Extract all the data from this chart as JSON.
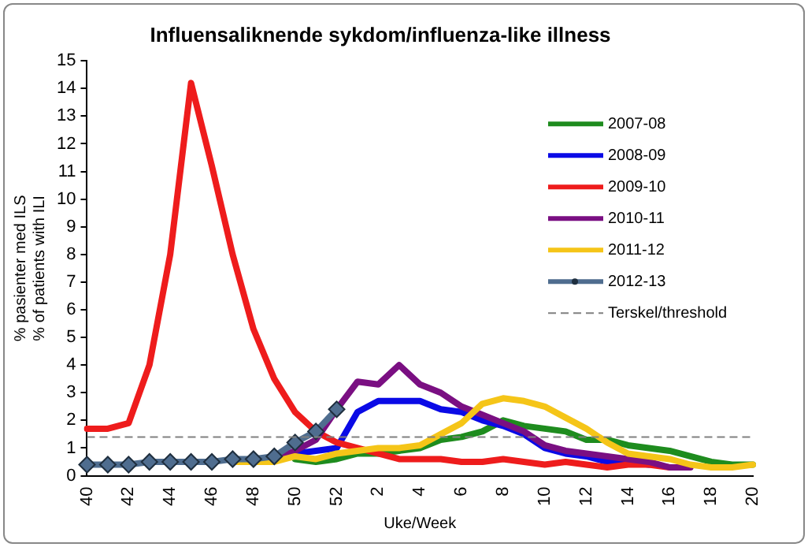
{
  "chart_data": {
    "type": "line",
    "title": "Influensaliknende sykdom/influenza-like illness",
    "xlabel": "Uke/Week",
    "ylabel": "% pasienter med ILS\n% of patients with ILI",
    "categories": [
      "40",
      null,
      "42",
      null,
      "44",
      null,
      "46",
      null,
      "48",
      null,
      "50",
      null,
      "52",
      null,
      "2",
      null,
      "4",
      null,
      "6",
      null,
      "8",
      null,
      "10",
      null,
      "12",
      null,
      "14",
      null,
      "16",
      null,
      "18",
      null,
      "20"
    ],
    "ylim": [
      0,
      15
    ],
    "yticks": [
      0,
      1,
      2,
      3,
      4,
      5,
      6,
      7,
      8,
      9,
      10,
      11,
      12,
      13,
      14,
      15
    ],
    "grid": false,
    "legend": "top right",
    "line_style": "solid",
    "series": [
      {
        "name": "2007-08",
        "color": "#1e8c1e",
        "marker": "none",
        "values": [
          null,
          null,
          null,
          null,
          null,
          null,
          null,
          null,
          null,
          null,
          0.6,
          0.5,
          0.6,
          0.8,
          0.8,
          0.9,
          1.0,
          1.3,
          1.4,
          1.6,
          2.0,
          1.8,
          1.7,
          1.6,
          1.3,
          1.3,
          1.1,
          1.0,
          0.9,
          0.7,
          0.5,
          0.4,
          0.4
        ]
      },
      {
        "name": "2008-09",
        "color": "#0a0ae6",
        "marker": "none",
        "values": [
          null,
          null,
          null,
          null,
          null,
          null,
          null,
          null,
          null,
          null,
          0.8,
          0.9,
          1.0,
          2.3,
          2.7,
          2.7,
          2.7,
          2.4,
          2.3,
          2.0,
          1.8,
          1.5,
          1.0,
          0.8,
          0.7,
          0.5,
          0.5,
          0.4,
          null,
          null,
          null,
          null,
          null
        ]
      },
      {
        "name": "2009-10",
        "color": "#ee1c1c",
        "marker": "none",
        "values": [
          1.7,
          1.7,
          1.9,
          4.0,
          8.0,
          14.2,
          11.2,
          8.0,
          5.3,
          3.5,
          2.3,
          1.6,
          1.2,
          1.0,
          0.8,
          0.6,
          0.6,
          0.6,
          0.5,
          0.5,
          0.6,
          0.5,
          0.4,
          0.5,
          0.4,
          0.3,
          0.4,
          0.4,
          0.3,
          null,
          null,
          null,
          null
        ]
      },
      {
        "name": "2010-11",
        "color": "#7a0f82",
        "marker": "none",
        "values": [
          null,
          null,
          null,
          null,
          null,
          null,
          null,
          null,
          null,
          0.6,
          0.9,
          1.3,
          2.4,
          3.4,
          3.3,
          4.0,
          3.3,
          3.0,
          2.5,
          2.2,
          1.9,
          1.6,
          1.1,
          0.9,
          0.8,
          0.7,
          0.6,
          0.5,
          0.3,
          0.3,
          null,
          null,
          null
        ]
      },
      {
        "name": "2011-12",
        "color": "#f5c518",
        "marker": "none",
        "values": [
          null,
          null,
          null,
          null,
          null,
          null,
          null,
          0.5,
          0.5,
          0.5,
          0.7,
          0.6,
          0.8,
          0.9,
          1.0,
          1.0,
          1.1,
          1.5,
          1.9,
          2.6,
          2.8,
          2.7,
          2.5,
          2.1,
          1.7,
          1.2,
          0.8,
          0.7,
          0.6,
          0.4,
          0.3,
          0.3,
          0.4
        ]
      },
      {
        "name": "2012-13",
        "color": "#4f6d8f",
        "marker": "diamond",
        "values": [
          0.4,
          0.4,
          0.4,
          0.5,
          0.5,
          0.5,
          0.5,
          0.6,
          0.6,
          0.7,
          1.2,
          1.6,
          2.4,
          null,
          null,
          null,
          null,
          null,
          null,
          null,
          null,
          null,
          null,
          null,
          null,
          null,
          null,
          null,
          null,
          null,
          null,
          null,
          null
        ]
      }
    ],
    "ref_lines": [
      {
        "axis": "y",
        "value": 1.4,
        "label": "Terskel/threshold",
        "color": "#808080",
        "line_style": "dashed"
      }
    ]
  }
}
